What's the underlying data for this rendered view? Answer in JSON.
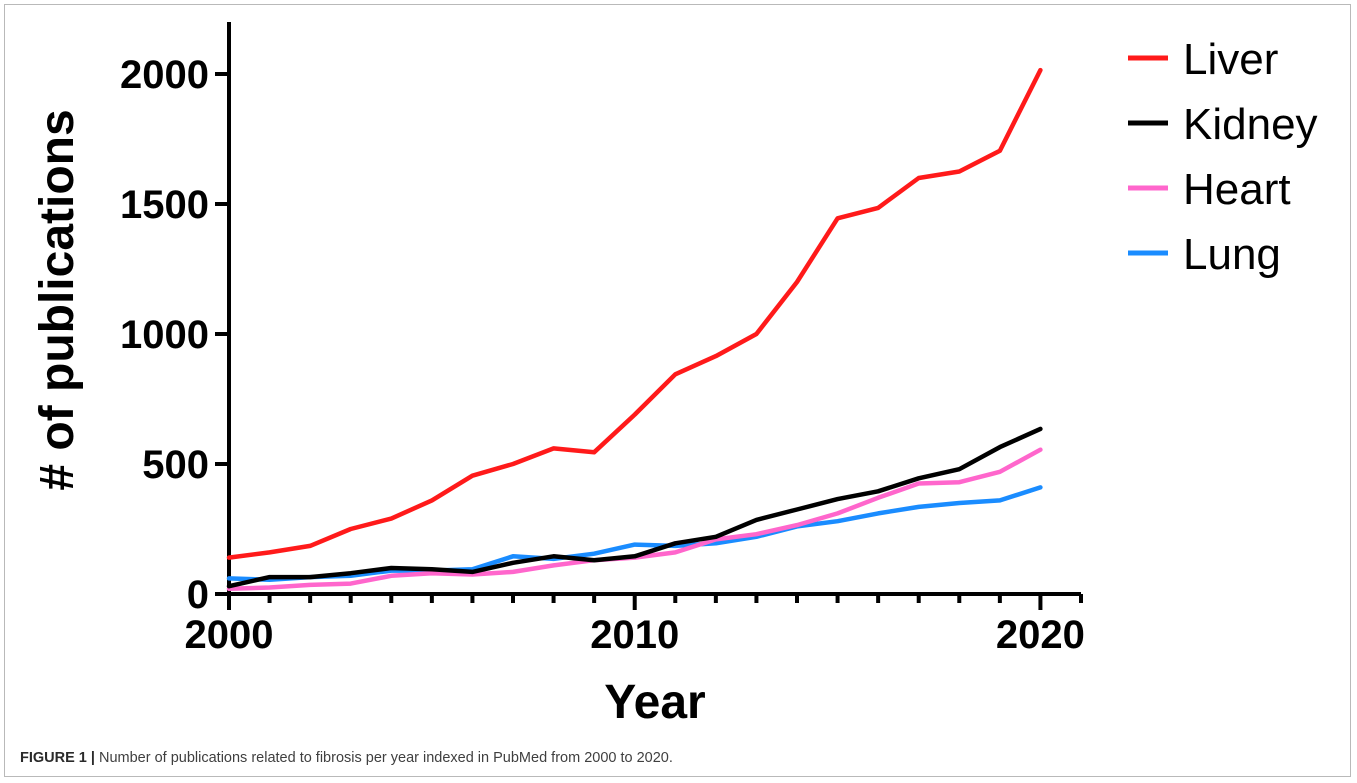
{
  "chart_data": {
    "type": "line",
    "title": "",
    "xlabel": "Year",
    "ylabel": "# of publications",
    "xlim": [
      2000,
      2021
    ],
    "ylim": [
      0,
      2200
    ],
    "x_ticks": [
      2000,
      2010,
      2020
    ],
    "y_ticks": [
      0,
      500,
      1000,
      1500,
      2000
    ],
    "grid": false,
    "legend_position": "top-right",
    "x": [
      2000,
      2001,
      2002,
      2003,
      2004,
      2005,
      2006,
      2007,
      2008,
      2009,
      2010,
      2011,
      2012,
      2013,
      2014,
      2015,
      2016,
      2017,
      2018,
      2019,
      2020
    ],
    "series": [
      {
        "name": "Liver",
        "color": "#ff1a1a",
        "values": [
          140,
          160,
          185,
          250,
          290,
          360,
          455,
          500,
          560,
          545,
          690,
          845,
          915,
          1000,
          1200,
          1445,
          1485,
          1600,
          1625,
          1705,
          2015
        ]
      },
      {
        "name": "Kidney",
        "color": "#000000",
        "values": [
          30,
          65,
          65,
          80,
          100,
          95,
          85,
          120,
          145,
          130,
          145,
          195,
          220,
          285,
          325,
          365,
          395,
          445,
          480,
          565,
          635
        ]
      },
      {
        "name": "Heart",
        "color": "#ff66cc",
        "values": [
          20,
          25,
          35,
          40,
          70,
          80,
          75,
          85,
          110,
          130,
          140,
          160,
          210,
          230,
          265,
          310,
          370,
          425,
          430,
          470,
          555
        ]
      },
      {
        "name": "Lung",
        "color": "#1a8cff",
        "values": [
          60,
          55,
          65,
          70,
          90,
          90,
          95,
          145,
          135,
          155,
          190,
          185,
          195,
          220,
          260,
          280,
          310,
          335,
          350,
          360,
          410
        ]
      }
    ]
  },
  "caption": {
    "label": "FIGURE 1 |",
    "text": " Number of publications related to fibrosis per year indexed in PubMed from 2000 to 2020."
  }
}
